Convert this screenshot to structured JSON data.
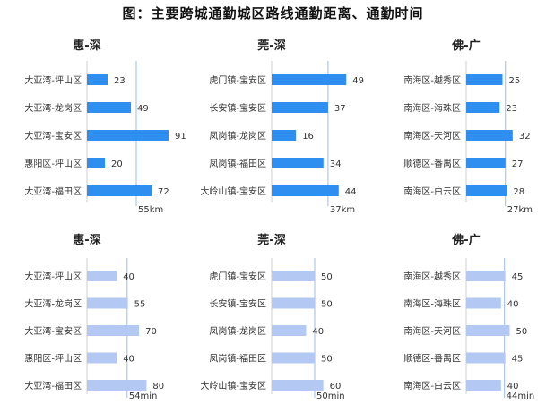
{
  "title": "图：主要跨城通勤城区路线通勤距离、通勤时间",
  "chart_data": [
    {
      "type": "bar",
      "title": "惠-深",
      "unit": "km",
      "color": "#2f8ff0",
      "categories": [
        "大亚湾-坪山区",
        "大亚湾-龙岗区",
        "大亚湾-宝安区",
        "惠阳区-坪山区",
        "大亚湾-福田区"
      ],
      "values": [
        23,
        49,
        91,
        20,
        72
      ],
      "reference": {
        "value": 55,
        "label": "55km"
      }
    },
    {
      "type": "bar",
      "title": "莞-深",
      "unit": "km",
      "color": "#2f8ff0",
      "categories": [
        "虎门镇-宝安区",
        "长安镇-宝安区",
        "凤岗镇-龙岗区",
        "凤岗镇-福田区",
        "大岭山镇-宝安区"
      ],
      "values": [
        49,
        37,
        16,
        34,
        44
      ],
      "reference": {
        "value": 37,
        "label": "37km"
      }
    },
    {
      "type": "bar",
      "title": "佛-广",
      "unit": "km",
      "color": "#2f8ff0",
      "categories": [
        "南海区-越秀区",
        "南海区-海珠区",
        "南海区-天河区",
        "顺德区-番禺区",
        "南海区-白云区"
      ],
      "values": [
        25,
        23,
        32,
        27,
        28
      ],
      "reference": {
        "value": 27,
        "label": "27km"
      }
    },
    {
      "type": "bar",
      "title": "惠-深",
      "unit": "min",
      "color": "#b3c9f3",
      "categories": [
        "大亚湾-坪山区",
        "大亚湾-龙岗区",
        "大亚湾-宝安区",
        "惠阳区-坪山区",
        "大亚湾-福田区"
      ],
      "values": [
        40,
        55,
        70,
        40,
        80
      ],
      "reference": {
        "value": 54,
        "label": "54min"
      }
    },
    {
      "type": "bar",
      "title": "莞-深",
      "unit": "min",
      "color": "#b3c9f3",
      "categories": [
        "虎门镇-宝安区",
        "长安镇-宝安区",
        "凤岗镇-龙岗区",
        "凤岗镇-福田区",
        "大岭山镇-宝安区"
      ],
      "values": [
        50,
        50,
        40,
        50,
        60
      ],
      "reference": {
        "value": 50,
        "label": "50min"
      }
    },
    {
      "type": "bar",
      "title": "佛-广",
      "unit": "min",
      "color": "#b3c9f3",
      "categories": [
        "南海区-越秀区",
        "南海区-海珠区",
        "南海区-天河区",
        "顺德区-番禺区",
        "南海区-白云区"
      ],
      "values": [
        45,
        40,
        50,
        45,
        40
      ],
      "reference": {
        "value": 44,
        "label": "44min"
      }
    }
  ]
}
